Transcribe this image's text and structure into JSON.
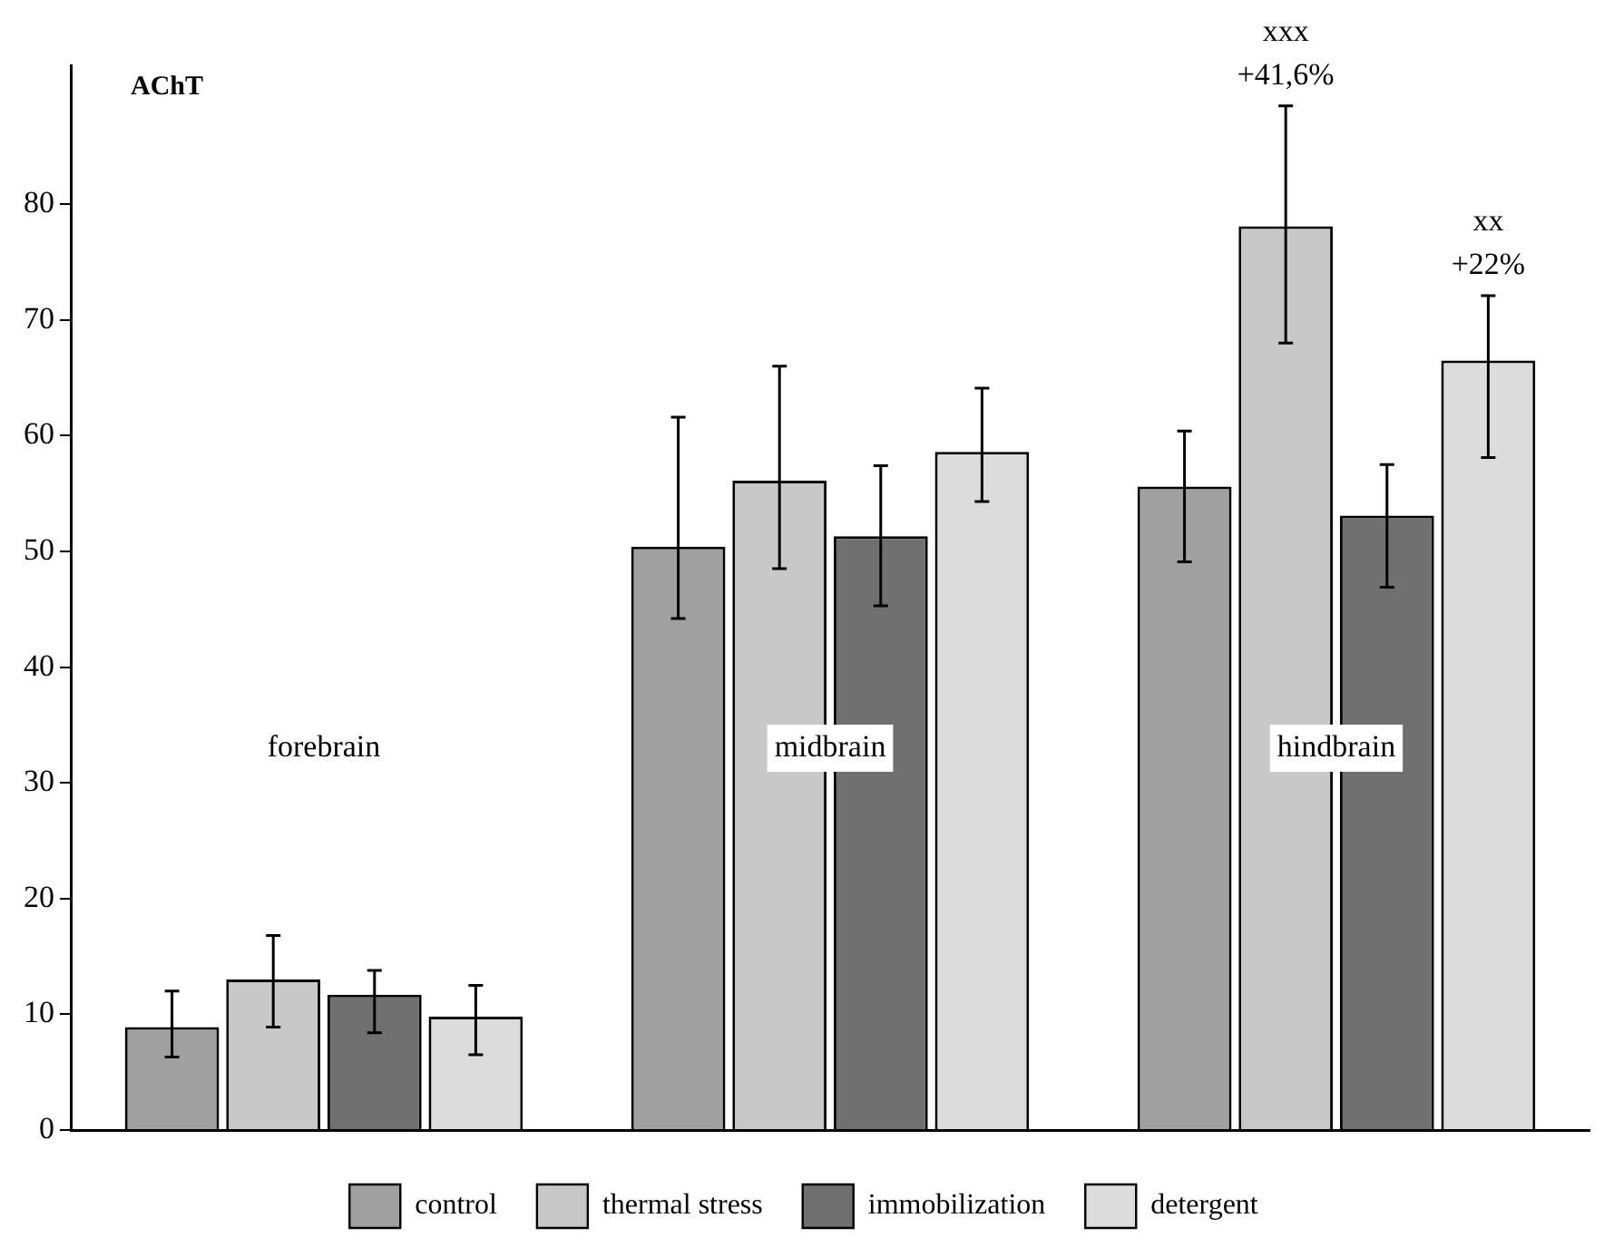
{
  "chart_data": {
    "type": "bar",
    "ylabel": "AChT",
    "categories": [
      "forebrain",
      "midbrain",
      "hindbrain"
    ],
    "series": [
      {
        "name": "control",
        "color": "#a0a0a0",
        "values": [
          8.9,
          50.4,
          55.6
        ],
        "errors": [
          [
            6.3,
            12.0
          ],
          [
            44.2,
            61.6
          ],
          [
            49.1,
            60.4
          ]
        ]
      },
      {
        "name": "thermal stress",
        "color": "#c8c8c8",
        "values": [
          13.0,
          56.1,
          78.1
        ],
        "errors": [
          [
            8.9,
            16.8
          ],
          [
            48.5,
            66.0
          ],
          [
            68.0,
            88.5
          ]
        ]
      },
      {
        "name": "immobilization",
        "color": "#707070",
        "values": [
          11.7,
          51.3,
          53.1
        ],
        "errors": [
          [
            8.4,
            13.8
          ],
          [
            45.3,
            57.4
          ],
          [
            46.9,
            57.5
          ]
        ]
      },
      {
        "name": "detergent",
        "color": "#dcdcdc",
        "values": [
          9.8,
          58.6,
          66.5
        ],
        "errors": [
          [
            6.5,
            12.5
          ],
          [
            54.3,
            64.1
          ],
          [
            58.1,
            72.1
          ]
        ]
      }
    ],
    "annotations": [
      "+41,6%",
      "xxx",
      "+22%",
      "xx"
    ],
    "ylim": [
      0,
      92
    ],
    "yticks": [
      0,
      10,
      20,
      30,
      40,
      50,
      60,
      70,
      80
    ],
    "grid": false,
    "legend": "bottom"
  }
}
